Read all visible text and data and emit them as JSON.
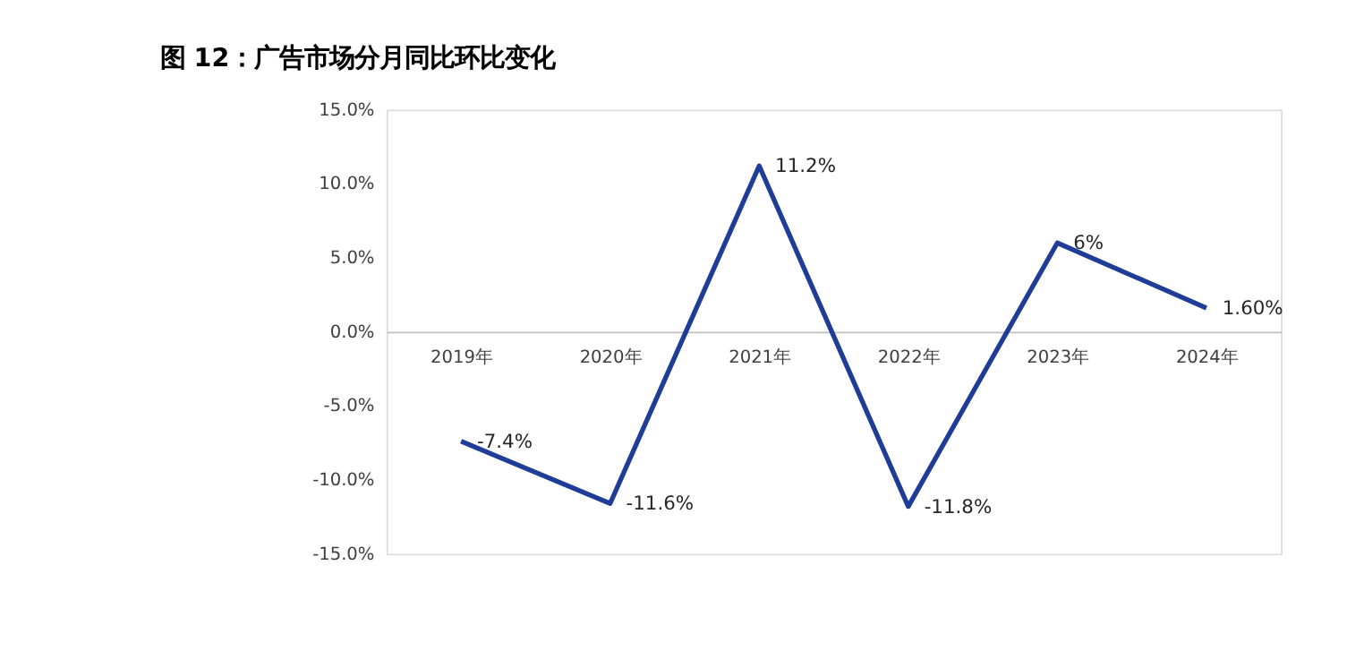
{
  "chart_data": {
    "type": "line",
    "title": "图 12：广告市场分月同比环比变化",
    "categories": [
      "2019年",
      "2020年",
      "2021年",
      "2022年",
      "2023年",
      "2024年"
    ],
    "series": [
      {
        "color": "#1f3c96",
        "values": [
          -7.4,
          -11.6,
          11.2,
          -11.8,
          6,
          1.6
        ],
        "value_labels": [
          "-7.4%",
          "-11.6%",
          "11.2%",
          "-11.8%",
          "6%",
          "1.60%"
        ]
      }
    ],
    "ylim": [
      -15,
      15
    ],
    "yticks": [
      {
        "value": -15,
        "label": "-15.0%"
      },
      {
        "value": -10,
        "label": "-10.0%"
      },
      {
        "value": -5,
        "label": "-5.0%"
      },
      {
        "value": 0,
        "label": "0.0%"
      },
      {
        "value": 5,
        "label": "5.0%"
      },
      {
        "value": 10,
        "label": "10.0%"
      },
      {
        "value": 15,
        "label": "15.0%"
      }
    ],
    "grid": false,
    "marker": "none",
    "line_style": "solid"
  }
}
